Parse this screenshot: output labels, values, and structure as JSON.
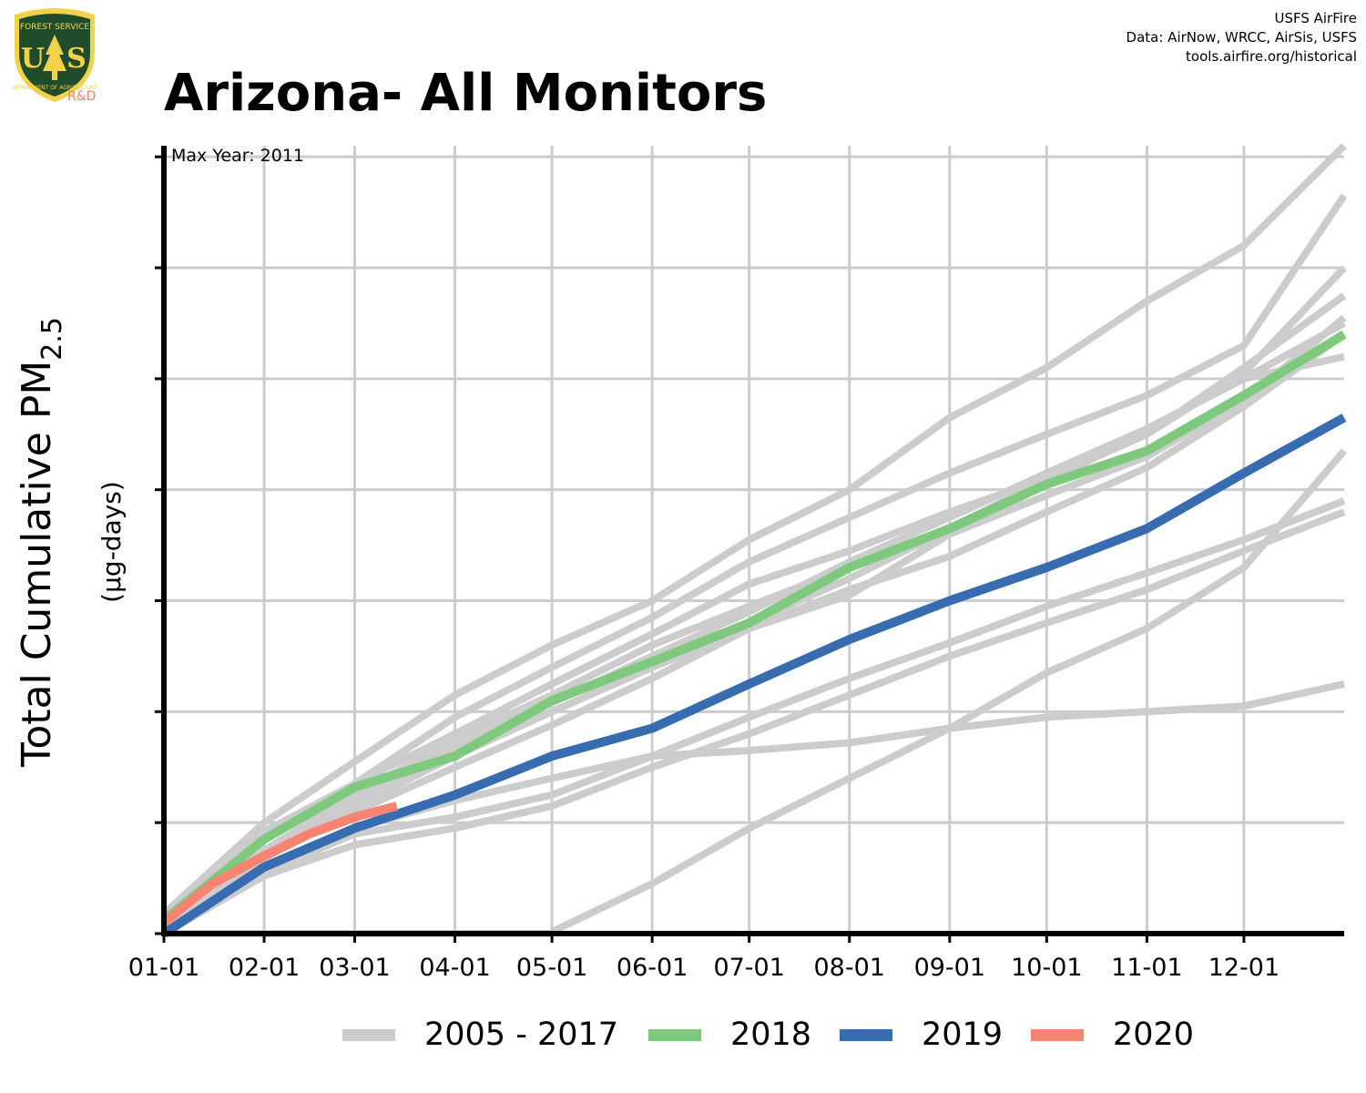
{
  "header": {
    "title": "Arizona- All Monitors",
    "logo_text": [
      "FOREST SERVICE",
      "U",
      "S",
      "DEPARTMENT OF AGRICULTURE"
    ],
    "logo_badge": "R&D",
    "credit_lines": [
      "USFS AirFire",
      "Data: AirNow, WRCC, AirSis, USFS",
      "tools.airfire.org/historical"
    ]
  },
  "annotation": {
    "max_year": "Max Year: 2011"
  },
  "colors": {
    "historical": "#cccccc",
    "y2018": "#7fc97f",
    "y2019": "#386cb0",
    "y2020": "#f88370",
    "grid": "#cccccc",
    "axis": "#000000",
    "logo_green": "#1f4d2b",
    "logo_gold": "#f2d24b"
  },
  "chart_data": {
    "type": "line",
    "title": "Arizona- All Monitors",
    "xlabel": "",
    "ylabel_main": "Total Cumulative PM",
    "ylabel_sub": "2.5",
    "ylabel_units": "(µg-days)",
    "x_tick_labels": [
      "01-01",
      "02-01",
      "03-01",
      "04-01",
      "05-01",
      "06-01",
      "07-01",
      "08-01",
      "09-01",
      "10-01",
      "11-01",
      "12-01"
    ],
    "x_tick_days": [
      0,
      31,
      59,
      90,
      120,
      151,
      181,
      212,
      243,
      273,
      304,
      334
    ],
    "xlim": [
      0,
      365
    ],
    "ylim": [
      0,
      7.1
    ],
    "y_ticks": [
      0,
      1,
      2,
      3,
      4,
      5,
      6,
      7
    ],
    "y_tick_labels_shown": false,
    "grid": true,
    "legend_position": "bottom",
    "legend": [
      {
        "label": "2005 - 2017",
        "color": "#cccccc"
      },
      {
        "label": "2018",
        "color": "#7fc97f"
      },
      {
        "label": "2019",
        "color": "#386cb0"
      },
      {
        "label": "2020",
        "color": "#f88370"
      }
    ],
    "series": [
      {
        "name": "2005 - 2017",
        "color": "#cccccc",
        "width": 8,
        "x": [
          0,
          31,
          59,
          90,
          120,
          151,
          181,
          212,
          243,
          273,
          304,
          334,
          365
        ],
        "y": [
          0.18,
          1.0,
          1.55,
          2.15,
          2.6,
          3.0,
          3.55,
          4.0,
          4.65,
          5.1,
          5.7,
          6.2,
          7.1
        ]
      },
      {
        "name": "2005 - 2017",
        "color": "#cccccc",
        "width": 8,
        "x": [
          0,
          31,
          59,
          90,
          120,
          151,
          181,
          212,
          243,
          273,
          304,
          334,
          365
        ],
        "y": [
          0.12,
          0.92,
          1.35,
          1.95,
          2.4,
          2.85,
          3.35,
          3.75,
          4.15,
          4.5,
          4.85,
          5.3,
          6.65
        ]
      },
      {
        "name": "2005 - 2017",
        "color": "#cccccc",
        "width": 8,
        "x": [
          0,
          31,
          59,
          90,
          120,
          151,
          181,
          212,
          243,
          273,
          304,
          334,
          365
        ],
        "y": [
          0.1,
          0.85,
          1.35,
          1.8,
          2.25,
          2.7,
          3.15,
          3.45,
          3.8,
          4.1,
          4.5,
          5.05,
          6.0
        ]
      },
      {
        "name": "2005 - 2017",
        "color": "#cccccc",
        "width": 8,
        "x": [
          0,
          31,
          59,
          90,
          120,
          151,
          181,
          212,
          243,
          273,
          304,
          334,
          365
        ],
        "y": [
          0.08,
          0.75,
          1.25,
          1.75,
          2.15,
          2.6,
          2.95,
          3.3,
          3.6,
          3.95,
          4.3,
          4.8,
          5.55
        ]
      },
      {
        "name": "2005 - 2017",
        "color": "#cccccc",
        "width": 8,
        "x": [
          0,
          31,
          59,
          90,
          120,
          151,
          181,
          212,
          243,
          273,
          304,
          334,
          365
        ],
        "y": [
          0.06,
          0.7,
          1.15,
          1.6,
          2.0,
          2.4,
          2.75,
          3.1,
          3.4,
          3.8,
          4.2,
          4.75,
          5.4
        ]
      },
      {
        "name": "2005 - 2017",
        "color": "#cccccc",
        "width": 8,
        "x": [
          0,
          31,
          59,
          90,
          120,
          151,
          181,
          212,
          243,
          273,
          304,
          334,
          365
        ],
        "y": [
          0.05,
          0.68,
          1.1,
          1.5,
          1.88,
          2.3,
          2.75,
          3.05,
          3.6,
          4.05,
          4.55,
          5.0,
          5.2
        ]
      },
      {
        "name": "2005 - 2017",
        "color": "#cccccc",
        "width": 8,
        "x": [
          0,
          31,
          59,
          90,
          120,
          151,
          181,
          212,
          243,
          273,
          304,
          334,
          365
        ],
        "y": [
          0.0,
          0.55,
          0.9,
          1.05,
          1.25,
          1.6,
          1.95,
          2.3,
          2.62,
          2.95,
          3.25,
          3.55,
          3.9
        ]
      },
      {
        "name": "2005 - 2017",
        "color": "#cccccc",
        "width": 8,
        "x": [
          0,
          31,
          59,
          90,
          120,
          151,
          181,
          212,
          243,
          273,
          304,
          334,
          365
        ],
        "y": [
          0.0,
          0.52,
          0.8,
          0.95,
          1.15,
          1.5,
          1.8,
          2.15,
          2.5,
          2.8,
          3.1,
          3.45,
          3.8
        ]
      },
      {
        "name": "2005 - 2017",
        "color": "#cccccc",
        "width": 8,
        "x": [
          0,
          31,
          59,
          90,
          120,
          151,
          181,
          212,
          243,
          273,
          304,
          334,
          365
        ],
        "y": [
          0.02,
          0.6,
          0.95,
          1.2,
          1.4,
          1.6,
          1.65,
          1.72,
          1.85,
          1.95,
          2.0,
          2.05,
          2.25
        ]
      },
      {
        "name": "2005 - 2017",
        "color": "#cccccc",
        "width": 8,
        "x": [
          0,
          31,
          59,
          90,
          120,
          121,
          151,
          181,
          212,
          243,
          273,
          304,
          334,
          365
        ],
        "y": [
          0.0,
          0.0,
          0.0,
          0.0,
          0.0,
          0.03,
          0.45,
          0.95,
          1.4,
          1.85,
          2.35,
          2.75,
          3.3,
          4.35
        ]
      },
      {
        "name": "2005 - 2017",
        "color": "#cccccc",
        "width": 8,
        "x": [
          0,
          31,
          59,
          90,
          120,
          151,
          181,
          212,
          243,
          273,
          304,
          334,
          365
        ],
        "y": [
          0.08,
          0.75,
          1.25,
          1.65,
          2.0,
          2.4,
          2.8,
          3.2,
          3.65,
          4.1,
          4.5,
          5.1,
          5.75
        ]
      },
      {
        "name": "2005 - 2017",
        "color": "#cccccc",
        "width": 8,
        "x": [
          0,
          31,
          59,
          90,
          120,
          151,
          181,
          212,
          243,
          273,
          304,
          334,
          365
        ],
        "y": [
          0.06,
          0.72,
          1.2,
          1.68,
          2.08,
          2.5,
          2.9,
          3.35,
          3.75,
          4.15,
          4.55,
          5.0,
          5.5
        ]
      },
      {
        "name": "2018",
        "color": "#7fc97f",
        "width": 10,
        "x": [
          0,
          31,
          59,
          90,
          120,
          151,
          181,
          212,
          243,
          273,
          304,
          334,
          365
        ],
        "y": [
          0.12,
          0.85,
          1.32,
          1.6,
          2.1,
          2.45,
          2.8,
          3.3,
          3.65,
          4.05,
          4.35,
          4.85,
          5.4
        ]
      },
      {
        "name": "2019",
        "color": "#386cb0",
        "width": 10,
        "x": [
          0,
          31,
          59,
          90,
          120,
          151,
          181,
          212,
          243,
          273,
          304,
          334,
          365
        ],
        "y": [
          0.0,
          0.6,
          0.95,
          1.25,
          1.6,
          1.85,
          2.25,
          2.65,
          3.0,
          3.3,
          3.65,
          4.15,
          4.65
        ]
      },
      {
        "name": "2020",
        "color": "#f88370",
        "width": 10,
        "x": [
          0,
          15,
          31,
          45,
          59,
          72
        ],
        "y": [
          0.1,
          0.45,
          0.7,
          0.9,
          1.05,
          1.15
        ]
      }
    ]
  }
}
